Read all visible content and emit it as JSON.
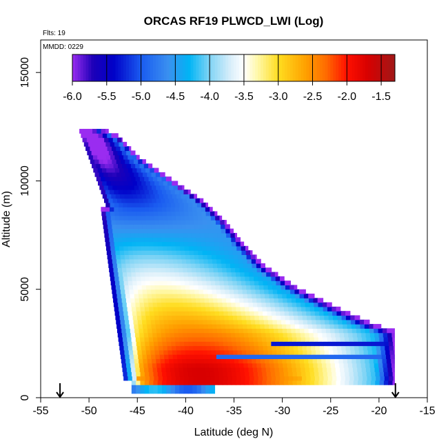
{
  "chart_data": {
    "type": "heatmap",
    "title": "ORCAS RF19 PLWCD_LWI (Log)",
    "annotations": [
      "Flts: 19",
      "MMDD: 0229"
    ],
    "xlabel": "Latitude (deg N)",
    "ylabel": "Altitude (m)",
    "xlim": [
      -55,
      -15
    ],
    "ylim": [
      0,
      16500
    ],
    "x_ticks": [
      -55,
      -50,
      -45,
      -40,
      -35,
      -30,
      -25,
      -20,
      -15
    ],
    "y_ticks": [
      0,
      5000,
      10000,
      15000
    ],
    "colorbar": {
      "range": [
        -6.0,
        -1.3
      ],
      "ticks": [
        -6.0,
        -5.5,
        -5.0,
        -4.5,
        -4.0,
        -3.5,
        -3.0,
        -2.5,
        -2.0,
        -1.5
      ],
      "tick_labels": [
        "-6.0",
        "-5.5",
        "-5.0",
        "-4.5",
        "-4.0",
        "-3.5",
        "-3.0",
        "-2.5",
        "-2.0",
        "-1.5"
      ],
      "stops": [
        {
          "v": -6.0,
          "c": "#9a2cf0"
        },
        {
          "v": -5.7,
          "c": "#1c00b8"
        },
        {
          "v": -5.4,
          "c": "#0000c8"
        },
        {
          "v": -5.0,
          "c": "#1a5bf0"
        },
        {
          "v": -4.6,
          "c": "#3a90f0"
        },
        {
          "v": -4.3,
          "c": "#00b4f5"
        },
        {
          "v": -4.0,
          "c": "#80d4f5"
        },
        {
          "v": -3.7,
          "c": "#d8eefa"
        },
        {
          "v": -3.5,
          "c": "#ffffff"
        },
        {
          "v": -3.3,
          "c": "#fff8a8"
        },
        {
          "v": -3.0,
          "c": "#ffdd20"
        },
        {
          "v": -2.6,
          "c": "#ffa000"
        },
        {
          "v": -2.3,
          "c": "#ff6a00"
        },
        {
          "v": -2.0,
          "c": "#ff1000"
        },
        {
          "v": -1.7,
          "c": "#d80000"
        },
        {
          "v": -1.3,
          "c": "#a01818"
        }
      ]
    },
    "flight_path_markers": [
      {
        "lat": -53.0,
        "alt": 0
      },
      {
        "lat": -18.3,
        "alt": 0
      }
    ],
    "grid": false,
    "legend": "colorbar-top"
  }
}
